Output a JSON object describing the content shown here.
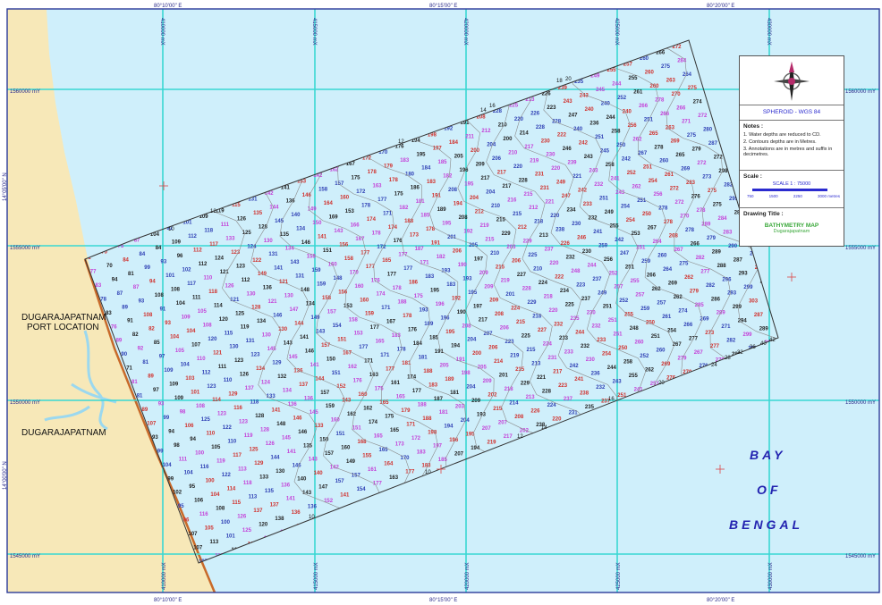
{
  "colors": {
    "sea": "#cfeffb",
    "land": "#f7e8b8",
    "grid": "#39d7d3",
    "border": "#2a3a9a",
    "soundings": [
      "#222222",
      "#d0302c",
      "#2e3fb4",
      "#c442d8"
    ]
  },
  "graticule": {
    "lon_top": [
      "80°10'00\" E",
      "80°15'00\" E",
      "80°20'00\" E"
    ],
    "lon_bottom": [
      "80°10'00\" E",
      "80°15'00\" E",
      "80°20'00\" E"
    ],
    "lat_left": [
      "14°05'00\" N",
      "14°00'00\" N"
    ],
    "easting": [
      "410000 mX",
      "415000 mX",
      "420000 mX",
      "425000 mX",
      "430000 mX"
    ],
    "northing_left": [
      "1560000 mY",
      "1555000 mY",
      "1550000 mY",
      "1545000 mY"
    ],
    "northing_right": [
      "1560000 mY",
      "1555000 mY",
      "1550000 mY",
      "1545000 mY"
    ]
  },
  "places": {
    "port": [
      "DUGARAJAPATNAM",
      "PORT LOCATION"
    ],
    "town": "DUGARAJAPATNAM",
    "sea": [
      "BAY",
      "OF",
      "BENGAL"
    ]
  },
  "contour_labels": [
    "10",
    "12",
    "14",
    "16",
    "18",
    "20",
    "24",
    "28",
    "32",
    "36",
    "40",
    "42"
  ],
  "legend": {
    "spheroid": "SPHEROID - WGS 84",
    "notes_title": "Notes :",
    "notes": [
      "1. Water depths are reduced to CD.",
      "2. Contours depths are in Metres.",
      "3. Annotations are in metres and suffix in decimetres."
    ],
    "scale_title": "Scale :",
    "scale_text": "SCALE 1 : 75000",
    "scale_ticks": [
      "750",
      "1500",
      "2250",
      "3000 metres"
    ],
    "drawing_title_label": "Drawing Title :",
    "drawing_title": "BATHYMETRY MAP",
    "drawing_subtitle": "Dugarajapatnam"
  }
}
